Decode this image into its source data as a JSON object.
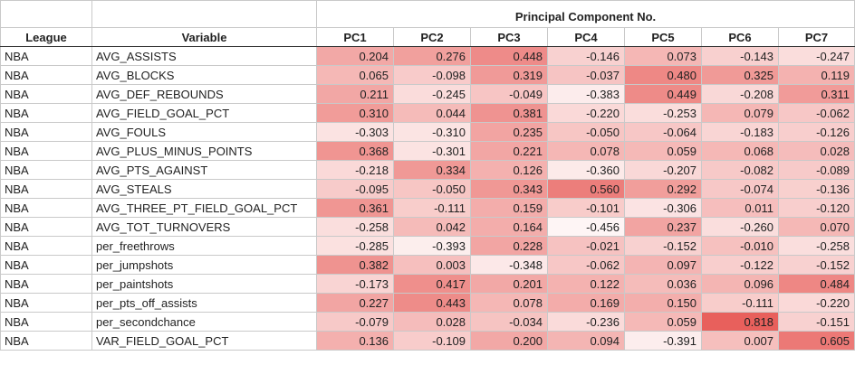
{
  "group_header": "Principal Component No.",
  "headers": {
    "league": "League",
    "variable": "Variable",
    "pcs": [
      "PC1",
      "PC2",
      "PC3",
      "PC4",
      "PC5",
      "PC6",
      "PC7"
    ]
  },
  "heat_color": "#e8605c",
  "rows": [
    {
      "league": "NBA",
      "variable": "AVG_ASSISTS",
      "values": [
        "0.204",
        "0.276",
        "0.448",
        "-0.146",
        "0.073",
        "-0.143",
        "-0.247"
      ]
    },
    {
      "league": "NBA",
      "variable": "AVG_BLOCKS",
      "values": [
        "0.065",
        "-0.098",
        "0.319",
        "-0.037",
        "0.480",
        "0.325",
        "0.119"
      ]
    },
    {
      "league": "NBA",
      "variable": "AVG_DEF_REBOUNDS",
      "values": [
        "0.211",
        "-0.245",
        "-0.049",
        "-0.383",
        "0.449",
        "-0.208",
        "0.311"
      ]
    },
    {
      "league": "NBA",
      "variable": "AVG_FIELD_GOAL_PCT",
      "values": [
        "0.310",
        "0.044",
        "0.381",
        "-0.220",
        "-0.253",
        "0.079",
        "-0.062"
      ]
    },
    {
      "league": "NBA",
      "variable": "AVG_FOULS",
      "values": [
        "-0.303",
        "-0.310",
        "0.235",
        "-0.050",
        "-0.064",
        "-0.183",
        "-0.126"
      ]
    },
    {
      "league": "NBA",
      "variable": "AVG_PLUS_MINUS_POINTS",
      "values": [
        "0.368",
        "-0.301",
        "0.221",
        "0.078",
        "0.059",
        "0.068",
        "0.028"
      ]
    },
    {
      "league": "NBA",
      "variable": "AVG_PTS_AGAINST",
      "values": [
        "-0.218",
        "0.334",
        "0.126",
        "-0.360",
        "-0.207",
        "-0.082",
        "-0.089"
      ]
    },
    {
      "league": "NBA",
      "variable": "AVG_STEALS",
      "values": [
        "-0.095",
        "-0.050",
        "0.343",
        "0.560",
        "0.292",
        "-0.074",
        "-0.136"
      ]
    },
    {
      "league": "NBA",
      "variable": "AVG_THREE_PT_FIELD_GOAL_PCT",
      "values": [
        "0.361",
        "-0.111",
        "0.159",
        "-0.101",
        "-0.306",
        "0.011",
        "-0.120"
      ]
    },
    {
      "league": "NBA",
      "variable": "AVG_TOT_TURNOVERS",
      "values": [
        "-0.258",
        "0.042",
        "0.164",
        "-0.456",
        "0.237",
        "-0.260",
        "0.070"
      ]
    },
    {
      "league": "NBA",
      "variable": "per_freethrows",
      "values": [
        "-0.285",
        "-0.393",
        "0.228",
        "-0.021",
        "-0.152",
        "-0.010",
        "-0.258"
      ]
    },
    {
      "league": "NBA",
      "variable": "per_jumpshots",
      "values": [
        "0.382",
        "0.003",
        "-0.348",
        "-0.062",
        "0.097",
        "-0.122",
        "-0.152"
      ]
    },
    {
      "league": "NBA",
      "variable": "per_paintshots",
      "values": [
        "-0.173",
        "0.417",
        "0.201",
        "0.122",
        "0.036",
        "0.096",
        "0.484"
      ]
    },
    {
      "league": "NBA",
      "variable": "per_pts_off_assists",
      "values": [
        "0.227",
        "0.443",
        "0.078",
        "0.169",
        "0.150",
        "-0.111",
        "-0.220"
      ]
    },
    {
      "league": "NBA",
      "variable": "per_secondchance",
      "values": [
        "-0.079",
        "0.028",
        "-0.034",
        "-0.236",
        "0.059",
        "0.818",
        "-0.151"
      ]
    },
    {
      "league": "NBA",
      "variable": "VAR_FIELD_GOAL_PCT",
      "values": [
        "0.136",
        "-0.109",
        "0.200",
        "0.094",
        "-0.391",
        "0.007",
        "0.605"
      ]
    }
  ]
}
